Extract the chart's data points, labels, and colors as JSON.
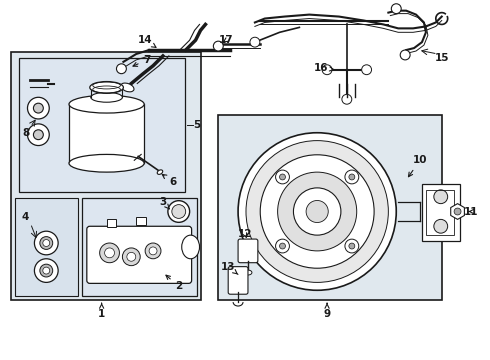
{
  "bg_color": "#ffffff",
  "line_color": "#1a1a1a",
  "box_fill_outer": "#e8e8e8",
  "box_fill_inner": "#dde8ee",
  "fs": 7.5
}
